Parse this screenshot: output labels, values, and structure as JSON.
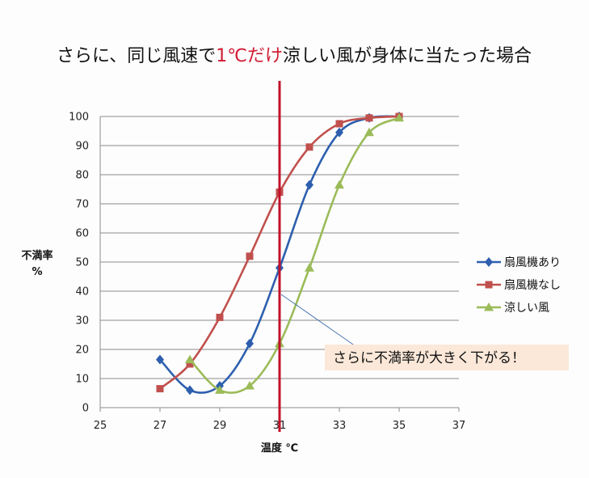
{
  "chart_data": {
    "type": "line",
    "title": {
      "before": "さらに、同じ風速で",
      "highlight": "1℃だけ",
      "after": "涼しい風が身体に当たった場合"
    },
    "xlabel": "温度 ℃",
    "ylabel": [
      "不満率",
      "%"
    ],
    "xlim": [
      25,
      37
    ],
    "ylim": [
      0,
      100
    ],
    "x_ticks": [
      "25",
      "27",
      "29",
      "31",
      "33",
      "35",
      "37"
    ],
    "y_ticks": [
      "0",
      "10",
      "20",
      "30",
      "40",
      "50",
      "60",
      "70",
      "80",
      "90",
      "100"
    ],
    "grid": "horizontal",
    "legend_position": "right",
    "smooth": true,
    "series": [
      {
        "name": "扇風機あり",
        "color": "#2e5fae",
        "marker": "diamond",
        "x": [
          27,
          28,
          29,
          30,
          31,
          32,
          33,
          34,
          35
        ],
        "y": [
          16.5,
          6,
          7.5,
          22,
          48,
          76.5,
          94.5,
          99.5,
          100
        ]
      },
      {
        "name": "扇風機なし",
        "color": "#c0504d",
        "marker": "square",
        "x": [
          27,
          28,
          29,
          30,
          31,
          32,
          33,
          34,
          35
        ],
        "y": [
          6.5,
          15,
          31,
          52,
          74,
          89.5,
          97.5,
          99.5,
          100
        ]
      },
      {
        "name": "涼しい風",
        "color": "#9bbb59",
        "marker": "triangle",
        "x": [
          28,
          29,
          30,
          31,
          32,
          33,
          34,
          35
        ],
        "y": [
          16.5,
          6,
          7.5,
          22,
          48,
          76.5,
          94.5,
          99.5
        ]
      }
    ],
    "reference_line": {
      "x": 31,
      "color": "#c2102b"
    },
    "annotation": {
      "text": "さらに不満率が大きく下がる！",
      "point_to": {
        "x": 31,
        "y": 40
      }
    }
  }
}
